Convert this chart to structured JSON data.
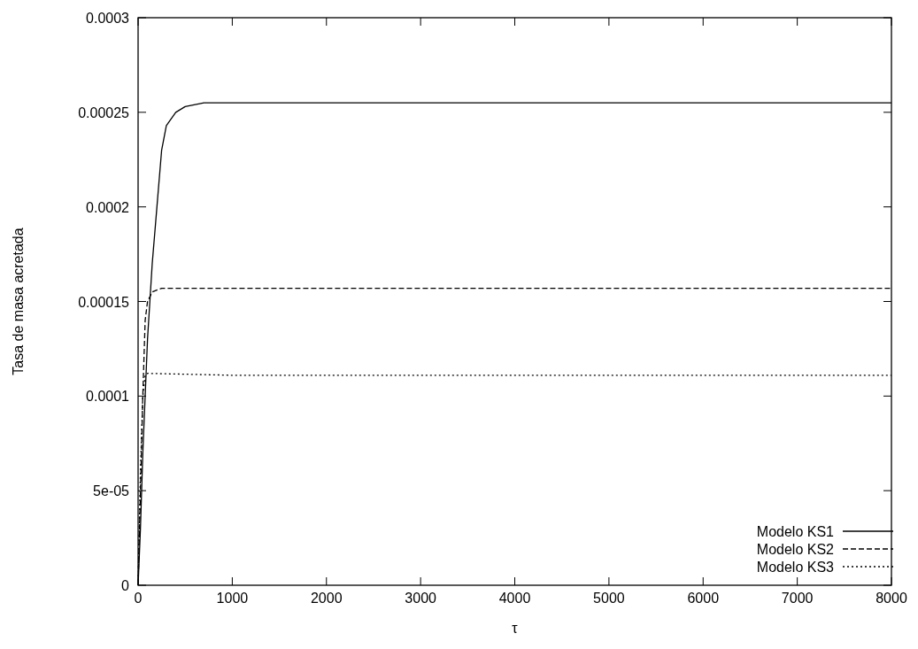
{
  "chart_data": {
    "type": "line",
    "xlabel": "τ",
    "ylabel": "Tasa de masa acretada",
    "xlim": [
      0,
      8000
    ],
    "xticks": [
      0,
      1000,
      2000,
      3000,
      4000,
      5000,
      6000,
      7000,
      8000
    ],
    "ylim": [
      0,
      0.0003
    ],
    "yticks": [
      {
        "value": 0,
        "label": "0"
      },
      {
        "value": 5e-05,
        "label": "5e-05"
      },
      {
        "value": 0.0001,
        "label": "0.0001"
      },
      {
        "value": 0.00015,
        "label": "0.00015"
      },
      {
        "value": 0.0002,
        "label": "0.0002"
      },
      {
        "value": 0.00025,
        "label": "0.00025"
      },
      {
        "value": 0.0003,
        "label": "0.0003"
      }
    ],
    "grid": false,
    "legend": "bottom right",
    "series": [
      {
        "name": "Modelo KS1",
        "color": "#000000",
        "line_style": "solid",
        "x": [
          0,
          25,
          50,
          100,
          150,
          200,
          250,
          300,
          400,
          500,
          700,
          1000,
          2000,
          3000,
          4000,
          5000,
          6000,
          7000,
          8000
        ],
        "values": [
          0,
          3e-05,
          7e-05,
          0.00013,
          0.00017,
          0.0002,
          0.00023,
          0.000243,
          0.00025,
          0.000253,
          0.000255,
          0.000255,
          0.000255,
          0.000255,
          0.000255,
          0.000255,
          0.000255,
          0.000255,
          0.000255
        ]
      },
      {
        "name": "Modelo KS2",
        "color": "#000000",
        "line_style": "dashed",
        "x": [
          0,
          25,
          50,
          75,
          100,
          150,
          250,
          1000,
          2000,
          3000,
          4000,
          5000,
          6000,
          7000,
          8000
        ],
        "values": [
          0,
          5e-05,
          0.0001,
          0.00014,
          0.00015,
          0.000155,
          0.000157,
          0.000157,
          0.000157,
          0.000157,
          0.000157,
          0.000157,
          0.000157,
          0.000157,
          0.000157
        ]
      },
      {
        "name": "Modelo KS3",
        "color": "#000000",
        "line_style": "dotted",
        "x": [
          0,
          25,
          50,
          75,
          100,
          1000,
          2000,
          3000,
          4000,
          5000,
          6000,
          7000,
          8000
        ],
        "values": [
          0,
          6e-05,
          0.0001,
          0.000111,
          0.000112,
          0.000111,
          0.000111,
          0.000111,
          0.000111,
          0.000111,
          0.000111,
          0.000111,
          0.000111
        ]
      }
    ]
  }
}
